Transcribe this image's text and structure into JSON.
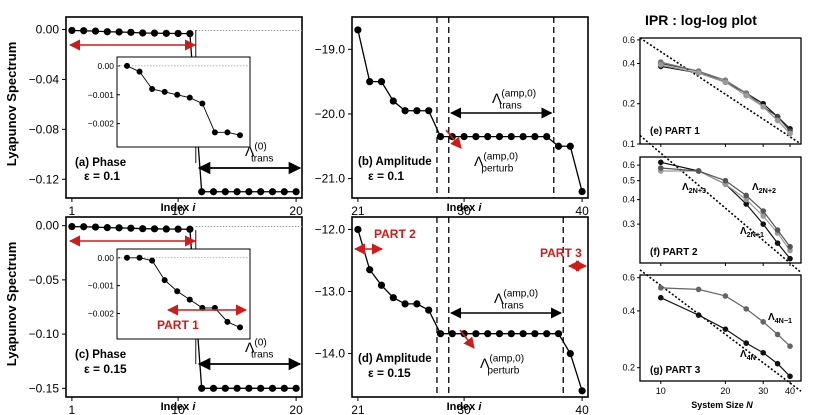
{
  "colors": {
    "red": "#d11a1a",
    "dark": "#111111",
    "mid": "#555555",
    "light": "#9a9a9a"
  },
  "title": "IPR : log-log plot",
  "ylabel": "Lyapunov Spectrum",
  "xlabel_index": "Index",
  "xlabel_index_var": "i",
  "xlabel_system": "System Size",
  "xlabel_system_var": "N",
  "chart_data": [
    {
      "id": "a",
      "type": "line",
      "title_text": "(a)  Phase",
      "eps_text": "ε = 0.1",
      "x": [
        1,
        2,
        3,
        4,
        5,
        6,
        7,
        8,
        9,
        10,
        11,
        12,
        13,
        14,
        15,
        16,
        17,
        18,
        19,
        20
      ],
      "y": [
        -0.0008,
        -0.001,
        -0.0013,
        -0.0018,
        -0.002,
        -0.0023,
        -0.0028,
        -0.0029,
        -0.0031,
        -0.0032,
        -0.0033,
        -0.13,
        -0.13,
        -0.13,
        -0.13,
        -0.13,
        -0.13,
        -0.13,
        -0.13,
        -0.13
      ],
      "xlim": [
        0.5,
        20.5
      ],
      "ylim": [
        -0.135,
        0.01
      ],
      "xticks": [
        "1",
        "10",
        "20"
      ],
      "yticks": [
        "0.00",
        "−0.04",
        "−0.08",
        "−0.12"
      ],
      "annotation": "Λ",
      "annotation_sup": "(0)",
      "annotation_sub": "trans",
      "inset": {
        "x": [
          1,
          2,
          3,
          4,
          5,
          6,
          7,
          8,
          9,
          10
        ],
        "y": [
          0,
          -0.0002,
          -0.0008,
          -0.0009,
          -0.001,
          -0.0011,
          -0.0013,
          -0.0023,
          -0.0023,
          -0.0024
        ],
        "ylim": [
          -0.0026,
          0.0001
        ],
        "yticks": [
          "0.00",
          "−0.001",
          "−0.002"
        ]
      }
    },
    {
      "id": "b",
      "type": "line",
      "title_text": "(b)  Amplitude",
      "eps_text": "ε = 0.1",
      "x": [
        21,
        22,
        23,
        24,
        25,
        26,
        27,
        28,
        29,
        30,
        31,
        32,
        33,
        34,
        35,
        36,
        37,
        38,
        39,
        40
      ],
      "y": [
        -18.7,
        -19.5,
        -19.5,
        -19.8,
        -19.95,
        -19.95,
        -19.95,
        -20.35,
        -20.35,
        -20.35,
        -20.35,
        -20.35,
        -20.35,
        -20.35,
        -20.35,
        -20.35,
        -20.35,
        -20.5,
        -20.5,
        -21.2
      ],
      "xlim": [
        20.5,
        40.5
      ],
      "ylim": [
        -21.3,
        -18.5
      ],
      "xticks": [
        "21",
        "30",
        "40"
      ],
      "yticks": [
        "−19.0",
        "−20.0",
        "−21.0"
      ],
      "annotation1": "Λ",
      "annotation1_sup": "(amp,0)",
      "annotation1_sub": "trans",
      "annotation2": "Λ",
      "annotation2_sup": "(amp,0)",
      "annotation2_sub": "perturb"
    },
    {
      "id": "c",
      "type": "line",
      "title_text": "(c)  Phase",
      "eps_text": "ε = 0.15",
      "x": [
        1,
        2,
        3,
        4,
        5,
        6,
        7,
        8,
        9,
        10,
        11,
        12,
        13,
        14,
        15,
        16,
        17,
        18,
        19,
        20
      ],
      "y": [
        -0.0008,
        -0.001,
        -0.0013,
        -0.0018,
        -0.002,
        -0.0023,
        -0.0028,
        -0.0029,
        -0.0031,
        -0.0032,
        -0.0033,
        -0.15,
        -0.15,
        -0.15,
        -0.15,
        -0.15,
        -0.15,
        -0.15,
        -0.15,
        -0.15
      ],
      "xlim": [
        0.5,
        20.5
      ],
      "ylim": [
        -0.158,
        0.008
      ],
      "xticks": [
        "1",
        "10",
        "20"
      ],
      "yticks": [
        "0.00",
        "−0.05",
        "−0.10",
        "−0.15"
      ],
      "annotation": "Λ",
      "annotation_sup": "(0)",
      "annotation_sub": "trans",
      "part_label": "PART 1",
      "inset": {
        "x": [
          1,
          2,
          3,
          4,
          5,
          6,
          7,
          8,
          9,
          10
        ],
        "y": [
          0,
          0,
          -0.0001,
          -0.0008,
          -0.0012,
          -0.0015,
          -0.0018,
          -0.0018,
          -0.0023,
          -0.0025
        ],
        "ylim": [
          -0.0027,
          0.0001
        ],
        "yticks": [
          "0.00",
          "−0.001",
          "−0.002"
        ]
      }
    },
    {
      "id": "d",
      "type": "line",
      "title_text": "(d)  Amplitude",
      "eps_text": "ε = 0.15",
      "x": [
        21,
        22,
        23,
        24,
        25,
        26,
        27,
        28,
        29,
        30,
        31,
        32,
        33,
        34,
        35,
        36,
        37,
        38,
        39,
        40
      ],
      "y": [
        -12.0,
        -12.65,
        -12.9,
        -13.1,
        -13.2,
        -13.2,
        -13.3,
        -13.68,
        -13.68,
        -13.68,
        -13.68,
        -13.68,
        -13.68,
        -13.68,
        -13.68,
        -13.68,
        -13.68,
        -13.68,
        -14.0,
        -14.6
      ],
      "xlim": [
        20.5,
        40.5
      ],
      "ylim": [
        -14.7,
        -11.8
      ],
      "xticks": [
        "21",
        "30",
        "40"
      ],
      "yticks": [
        "−12.0",
        "−13.0",
        "−14.0"
      ],
      "part2_label": "PART 2",
      "part3_label": "PART 3",
      "annotation1": "Λ",
      "annotation1_sup": "(amp,0)",
      "annotation1_sub": "trans",
      "annotation2": "Λ",
      "annotation2_sup": "(amp,0)",
      "annotation2_sub": "perturb"
    },
    {
      "id": "e",
      "type": "line",
      "scale": "log-log",
      "title_text": "(e)  PART 1",
      "x": [
        10,
        15,
        20,
        25,
        30,
        35,
        40
      ],
      "series": [
        {
          "name": "s1",
          "color": "#111111",
          "values": [
            0.38,
            0.34,
            0.29,
            0.24,
            0.2,
            0.16,
            0.13
          ]
        },
        {
          "name": "s2",
          "color": "#444444",
          "values": [
            0.4,
            0.35,
            0.29,
            0.24,
            0.19,
            0.16,
            0.125
          ]
        },
        {
          "name": "s3",
          "color": "#777777",
          "values": [
            0.41,
            0.35,
            0.3,
            0.24,
            0.19,
            0.15,
            0.12
          ]
        },
        {
          "name": "s4",
          "color": "#9a9a9a",
          "values": [
            0.39,
            0.34,
            0.29,
            0.23,
            0.19,
            0.15,
            0.12
          ]
        }
      ],
      "reference": {
        "x": [
          8,
          45
        ],
        "y": [
          0.62,
          0.1
        ]
      },
      "xlim": [
        8,
        45
      ],
      "ylim": [
        0.1,
        0.62
      ],
      "yticks": [
        "0.6",
        "0.4",
        "0.2",
        "0.1"
      ]
    },
    {
      "id": "f",
      "type": "line",
      "scale": "log-log",
      "title_text": "(f)  PART 2",
      "x": [
        10,
        15,
        20,
        25,
        30,
        35,
        40
      ],
      "series": [
        {
          "name": "Λ2N+1",
          "color": "#111111",
          "values": [
            0.62,
            0.56,
            0.48,
            0.38,
            0.3,
            0.24,
            0.2
          ]
        },
        {
          "name": "Λ2N+3",
          "color": "#9a9a9a",
          "values": [
            0.56,
            0.56,
            0.48,
            0.4,
            0.33,
            0.27,
            0.22
          ]
        },
        {
          "name": "Λ2N+2",
          "color": "#555555",
          "values": [
            0.58,
            0.56,
            0.5,
            0.42,
            0.35,
            0.28,
            0.23
          ]
        }
      ],
      "labels": [
        {
          "base": "Λ",
          "sub": "2N+3"
        },
        {
          "base": "Λ",
          "sub": "2N+2"
        },
        {
          "base": "Λ",
          "sub": "2N+1"
        }
      ],
      "reference": {
        "x": [
          8,
          45
        ],
        "y": [
          0.85,
          0.17
        ]
      },
      "xlim": [
        8,
        45
      ],
      "ylim": [
        0.19,
        0.66
      ],
      "yticks": [
        "0.6",
        "0.5",
        "0.4",
        "0.3"
      ]
    },
    {
      "id": "g",
      "type": "line",
      "scale": "log-log",
      "title_text": "(g)  PART 3",
      "x": [
        10,
        15,
        20,
        25,
        30,
        35,
        40
      ],
      "series": [
        {
          "name": "Λ4N",
          "color": "#111111",
          "values": [
            0.47,
            0.38,
            0.32,
            0.27,
            0.24,
            0.21,
            0.18
          ]
        },
        {
          "name": "Λ4N-1",
          "color": "#666666",
          "values": [
            0.53,
            0.52,
            0.48,
            0.41,
            0.35,
            0.3,
            0.26
          ]
        }
      ],
      "labels": [
        {
          "base": "Λ",
          "sub": "4N−1"
        },
        {
          "base": "Λ",
          "sub": "4N"
        }
      ],
      "reference": {
        "x": [
          8,
          45
        ],
        "y": [
          0.66,
          0.15
        ]
      },
      "xlim": [
        8,
        45
      ],
      "ylim": [
        0.17,
        0.62
      ],
      "xticks": [
        "10",
        "20",
        "30",
        "40"
      ],
      "yticks": [
        "0.6",
        "0.4",
        "0.2"
      ]
    }
  ]
}
